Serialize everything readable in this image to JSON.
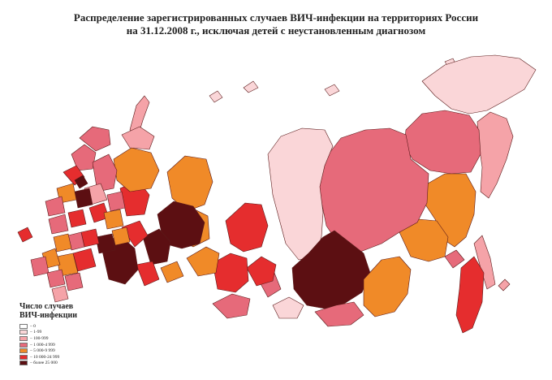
{
  "map": {
    "title_line1": "Распределение зарегистрированных случаев ВИЧ-инфекции на территориях России",
    "title_line2": "на 31.12.2008 г., исключая детей с неустановленным диагнозом",
    "legend": {
      "title_line1": "Число случаев",
      "title_line2": "ВИЧ-инфекции",
      "items": [
        {
          "label": "– 0",
          "color": "#ffffff"
        },
        {
          "label": "– 1-99",
          "color": "#fad6d8"
        },
        {
          "label": "– 100-999",
          "color": "#f5a3a8"
        },
        {
          "label": "– 1 000-4 999",
          "color": "#e66a7a"
        },
        {
          "label": "– 5 000-9 999",
          "color": "#f08a28"
        },
        {
          "label": "– 10 000-24 999",
          "color": "#e52d2e"
        },
        {
          "label": "– более 25 000",
          "color": "#5c0f12"
        }
      ]
    },
    "colors": {
      "c0": "#ffffff",
      "c1": "#fad6d8",
      "c2": "#f5a3a8",
      "c3": "#e66a7a",
      "c4": "#f08a28",
      "c5": "#e52d2e",
      "c6": "#5c0f12"
    }
  }
}
